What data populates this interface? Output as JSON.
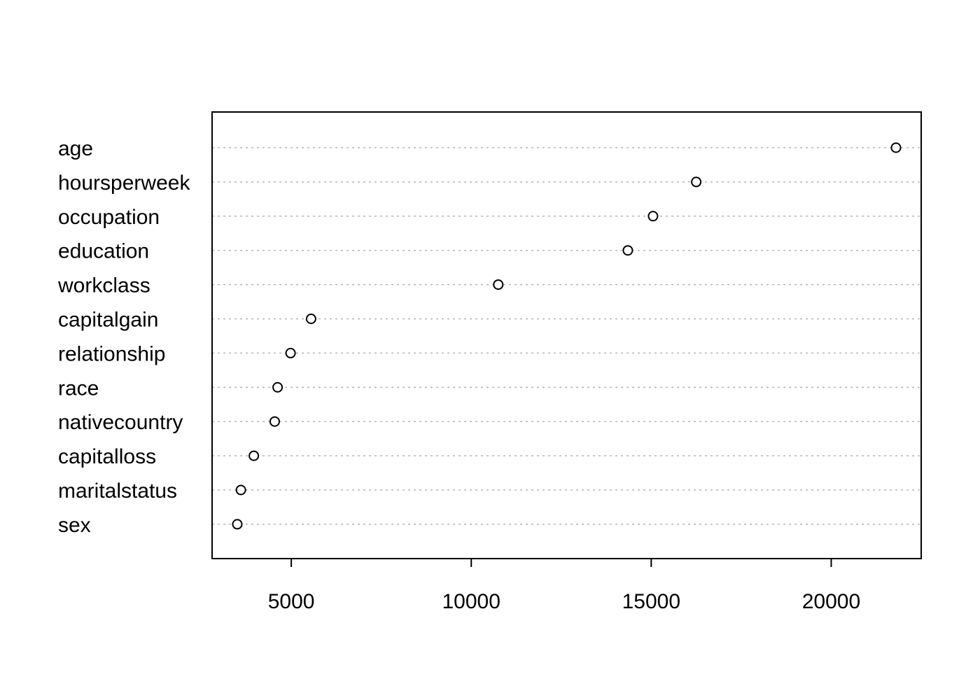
{
  "chart_data": {
    "type": "scatter",
    "title": "",
    "xlabel": "",
    "ylabel": "",
    "categories": [
      "age",
      "hoursperweek",
      "occupation",
      "education",
      "workclass",
      "capitalgain",
      "relationship",
      "race",
      "nativecountry",
      "capitalloss",
      "maritalstatus",
      "sex"
    ],
    "values": [
      21800,
      16250,
      15050,
      14350,
      10750,
      5550,
      4980,
      4620,
      4540,
      3960,
      3600,
      3500
    ],
    "xlim": [
      2800,
      22500
    ],
    "xticks": [
      5000,
      10000,
      15000,
      20000
    ],
    "xtick_labels": [
      "5000",
      "10000",
      "15000",
      "20000"
    ],
    "grid": "dotted horizontal guide lines per category",
    "marker": "open circle",
    "legend": "none"
  }
}
